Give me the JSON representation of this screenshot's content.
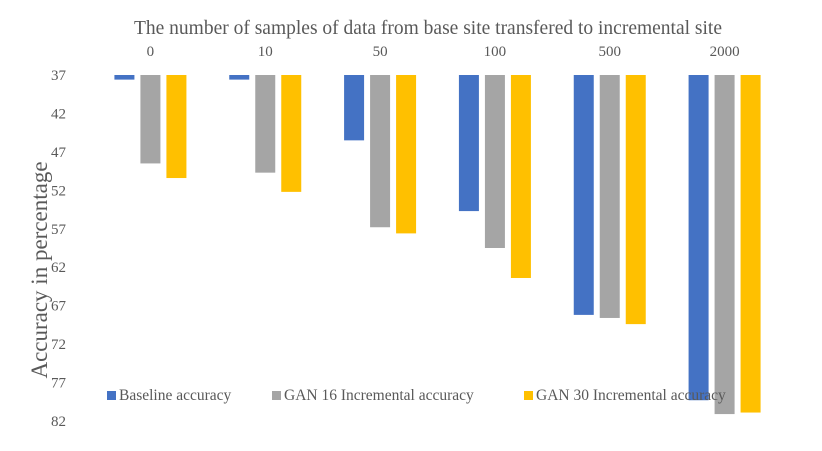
{
  "chart_data": {
    "type": "bar",
    "title": "",
    "xlabel": "The number of samples of data from base site transfered to incremental site",
    "ylabel": "Accuracy in percentage",
    "x_axis_position": "top",
    "y_axis_inverted": true,
    "ylim": [
      37,
      82
    ],
    "yticks": [
      37,
      42,
      47,
      52,
      57,
      62,
      67,
      72,
      77,
      82
    ],
    "categories": [
      "0",
      "10",
      "50",
      "100",
      "500",
      "2000"
    ],
    "series": [
      {
        "name": "Baseline accuracy",
        "color": "#4472C4",
        "values": [
          37.6,
          37.6,
          45.5,
          54.7,
          68.2,
          79.3
        ]
      },
      {
        "name": "GAN 16 Incremental accuracy",
        "color": "#A5A5A5",
        "values": [
          48.5,
          49.7,
          56.8,
          59.5,
          68.6,
          81.1
        ]
      },
      {
        "name": "GAN 30 Incremental accuracy",
        "color": "#FFC000",
        "values": [
          50.4,
          52.2,
          57.6,
          63.4,
          69.4,
          80.9
        ]
      }
    ],
    "legend_position": "bottom",
    "grid": false
  }
}
